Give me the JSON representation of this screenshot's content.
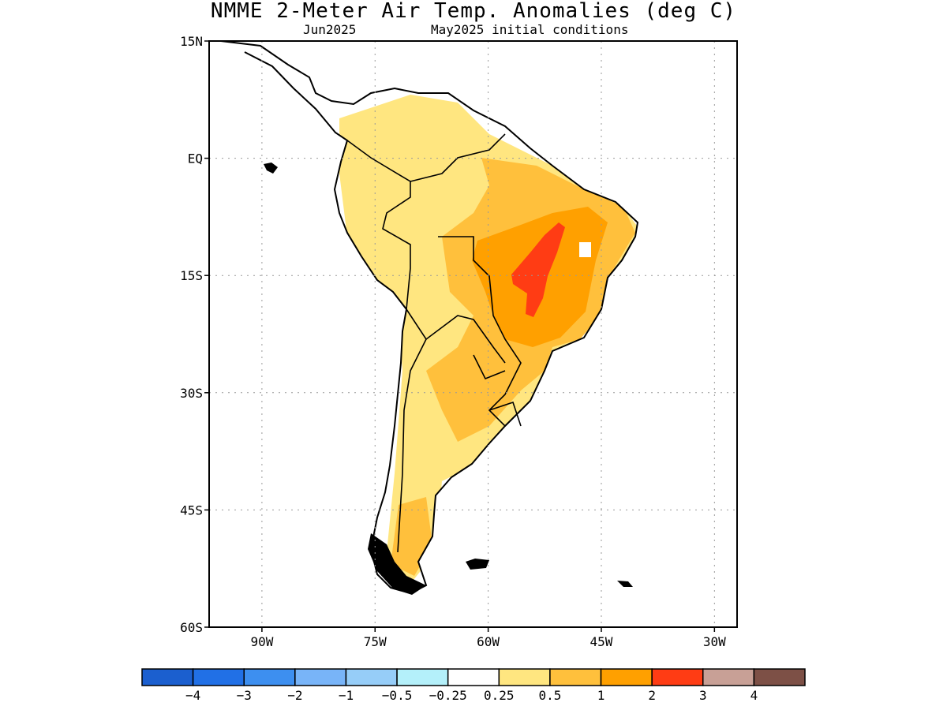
{
  "title": "NMME 2-Meter Air Temp. Anomalies (deg C)",
  "subtitle_left": "Jun2025",
  "subtitle_right": "May2025 initial conditions",
  "map": {
    "region": "South America",
    "lon_range": [
      -97,
      -27
    ],
    "lat_range": [
      -60,
      15
    ],
    "lat_ticks": [
      "15N",
      "EQ",
      "15S",
      "30S",
      "45S",
      "60S"
    ],
    "lon_ticks": [
      "90W",
      "75W",
      "60W",
      "45W",
      "30W"
    ],
    "gridlines": "dotted",
    "land_fill": "#ffffff",
    "coastline_color": "#000000"
  },
  "anomaly_regions": [
    {
      "category": "0.25 to 0.5",
      "color": "#ffe680",
      "area": "most of continent"
    },
    {
      "category": "0.5 to 1",
      "color": "#ffc03c",
      "area": "central and eastern Brazil, northern Argentina"
    },
    {
      "category": "1 to 2",
      "color": "#ffa000",
      "area": "central Brazil"
    },
    {
      "category": "2 to 3",
      "color": "#ff3c14",
      "area": "core of central Brazil"
    }
  ],
  "colorbar": {
    "colors": [
      "#1b5fcf",
      "#2170e6",
      "#3d8ff0",
      "#78b4f8",
      "#96cdf8",
      "#b4f0fa",
      "#ffffff",
      "#ffe680",
      "#ffc03c",
      "#ffa000",
      "#ff3c14",
      "#c8a096",
      "#7d5046"
    ],
    "labels": [
      "-4",
      "-3",
      "-2",
      "-1",
      "-0.5",
      "-0.25",
      "0.25",
      "0.5",
      "1",
      "2",
      "3",
      "4"
    ]
  }
}
